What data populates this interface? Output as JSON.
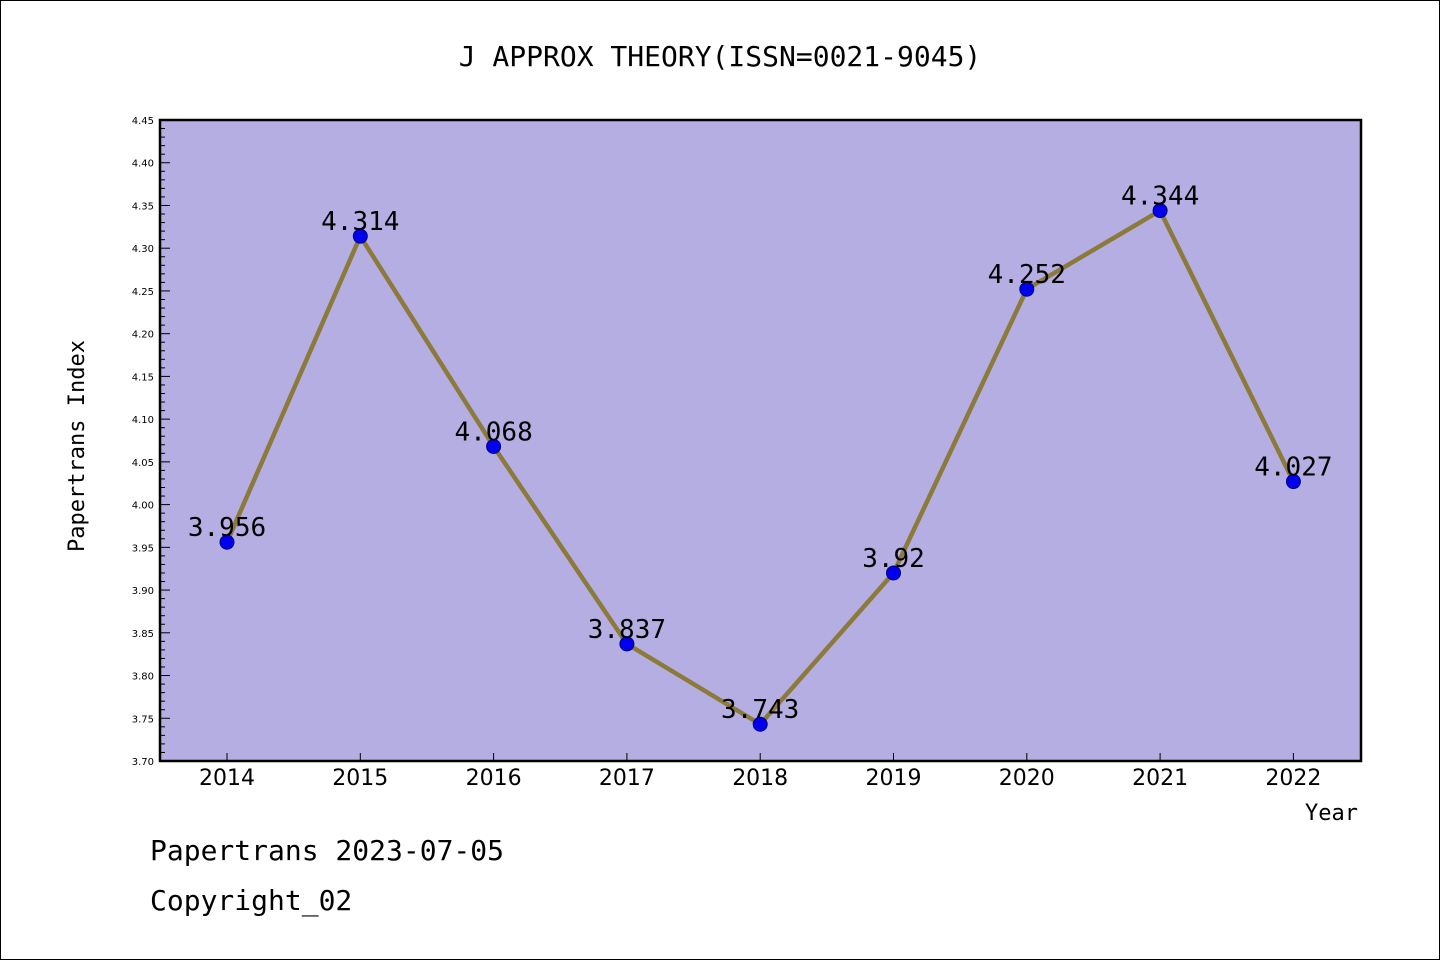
{
  "chart_data": {
    "type": "line",
    "title": "J APPROX THEORY(ISSN=0021-9045)",
    "xlabel": "Year",
    "ylabel": "Papertrans Index",
    "categories": [
      "2014",
      "2015",
      "2016",
      "2017",
      "2018",
      "2019",
      "2020",
      "2021",
      "2022"
    ],
    "values": [
      3.956,
      4.314,
      4.068,
      3.837,
      3.743,
      3.92,
      4.252,
      4.344,
      4.027
    ],
    "value_labels": [
      "3.956",
      "4.314",
      "4.068",
      "3.837",
      "3.743",
      "3.92",
      "4.252",
      "4.344",
      "4.027"
    ],
    "ylim": [
      3.7,
      4.45
    ],
    "yticks": [
      "3.70",
      "3.75",
      "3.80",
      "3.85",
      "3.90",
      "3.95",
      "4.00",
      "4.05",
      "4.10",
      "4.15",
      "4.20",
      "4.25",
      "4.30",
      "4.35",
      "4.40",
      "4.45"
    ],
    "grid": false,
    "legend": "none",
    "colors": {
      "plot_bg": "#b5aee3",
      "line": "#8b7a3a",
      "marker": "#0000ee",
      "marker_edge": "#00007a"
    }
  },
  "footer": {
    "line1": "Papertrans 2023-07-05",
    "line2": "Copyright_02"
  }
}
